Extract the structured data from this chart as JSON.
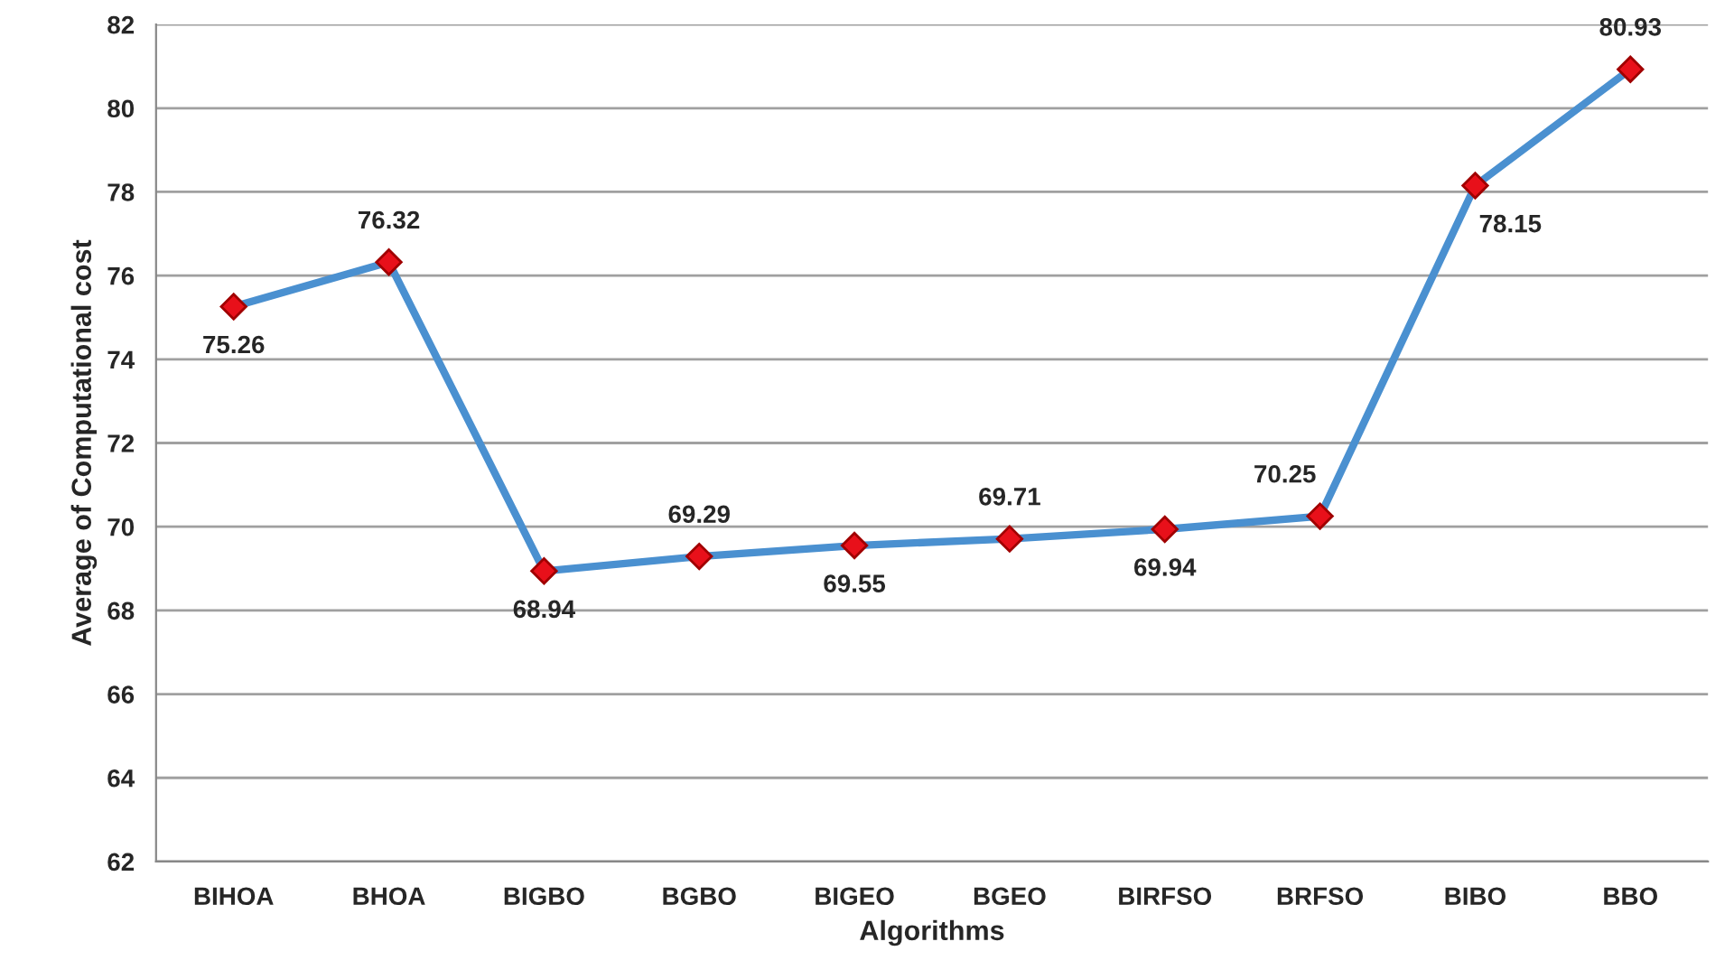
{
  "chart_data": {
    "type": "line",
    "xlabel": "Algorithms",
    "ylabel": "Average of Computational cost",
    "categories": [
      "BIHOA",
      "BHOA",
      "BIGBO",
      "BGBO",
      "BIGEO",
      "BGEO",
      "BIRFSO",
      "BRFSO",
      "BIBO",
      "BBO"
    ],
    "series": [
      {
        "color": "#4a90d0",
        "values": [
          75.26,
          76.32,
          68.94,
          69.29,
          69.55,
          69.71,
          69.94,
          70.25,
          78.15,
          80.93
        ]
      }
    ],
    "ylim": [
      62,
      82
    ],
    "yticks": [
      62,
      64,
      66,
      68,
      70,
      72,
      74,
      76,
      78,
      80,
      82
    ],
    "grid": "y",
    "marker": "diamond",
    "line_style": "solid",
    "data_labels": true,
    "legend": false
  }
}
